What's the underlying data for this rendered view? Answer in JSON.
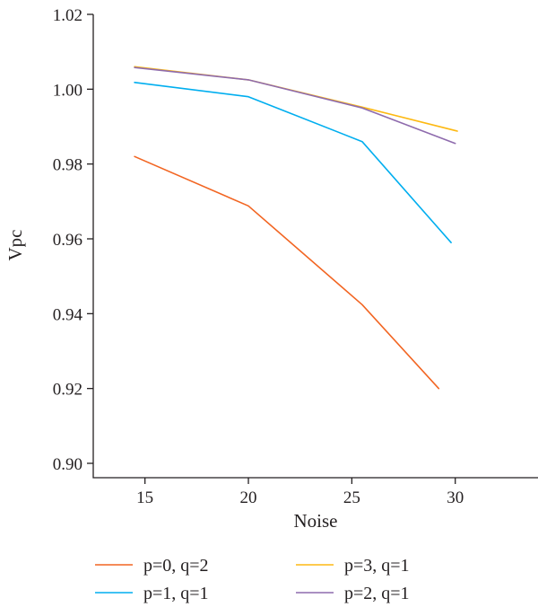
{
  "chart_data": {
    "type": "line",
    "xlabel": "Noise",
    "ylabel": "Vpc",
    "xlim": [
      12.5,
      34
    ],
    "ylim": [
      0.9,
      1.02
    ],
    "xticks": [
      "15",
      "20",
      "25",
      "30"
    ],
    "yticks": [
      "0.90",
      "0.92",
      "0.94",
      "0.96",
      "0.98",
      "1.00",
      "1.02"
    ],
    "grid": false,
    "legend_position": "bottom",
    "series": [
      {
        "name": "p=0, q=2",
        "color": "#f26522",
        "x": [
          14.5,
          20,
          25.5,
          29.2
        ],
        "y": [
          0.982,
          0.9688,
          0.9424,
          0.92
        ]
      },
      {
        "name": "p=1, q=1",
        "color": "#00aeef",
        "x": [
          14.5,
          20,
          25.5,
          29.8
        ],
        "y": [
          1.0018,
          0.998,
          0.986,
          0.959
        ]
      },
      {
        "name": "p=3, q=1",
        "color": "#fdb913",
        "x": [
          14.5,
          20,
          25.5,
          30.1
        ],
        "y": [
          1.006,
          1.0025,
          0.9952,
          0.9888
        ]
      },
      {
        "name": "p=2, q=1",
        "color": "#8e6bad",
        "x": [
          14.5,
          20,
          25.5,
          30.0
        ],
        "y": [
          1.0058,
          1.0025,
          0.995,
          0.9855
        ]
      }
    ]
  }
}
